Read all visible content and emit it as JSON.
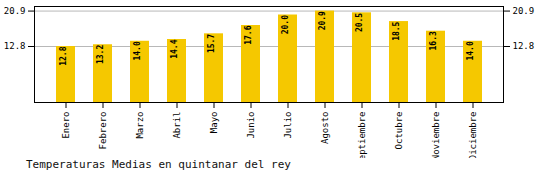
{
  "chart_data": {
    "type": "bar",
    "title": "Temperaturas Medias en quintanar del rey",
    "categories": [
      "Enero",
      "Febrero",
      "Marzo",
      "Abril",
      "Mayo",
      "Junio",
      "Julio",
      "Agosto",
      "Septiembre",
      "Octubre",
      "Noviembre",
      "Diciembre"
    ],
    "values": [
      12.8,
      13.2,
      14.0,
      14.4,
      15.7,
      17.6,
      20.0,
      20.9,
      20.5,
      18.5,
      16.3,
      14.0
    ],
    "value_labels": [
      "12.8",
      "13.2",
      "14.0",
      "14.4",
      "15.7",
      "17.6",
      "20.0",
      "20.9",
      "20.5",
      "18.5",
      "16.3",
      "14.0"
    ],
    "data_labels": true,
    "color": "#F5C800",
    "ylim": [
      0,
      21.945
    ],
    "yticks": [
      12.8,
      20.9
    ],
    "grid": true
  }
}
